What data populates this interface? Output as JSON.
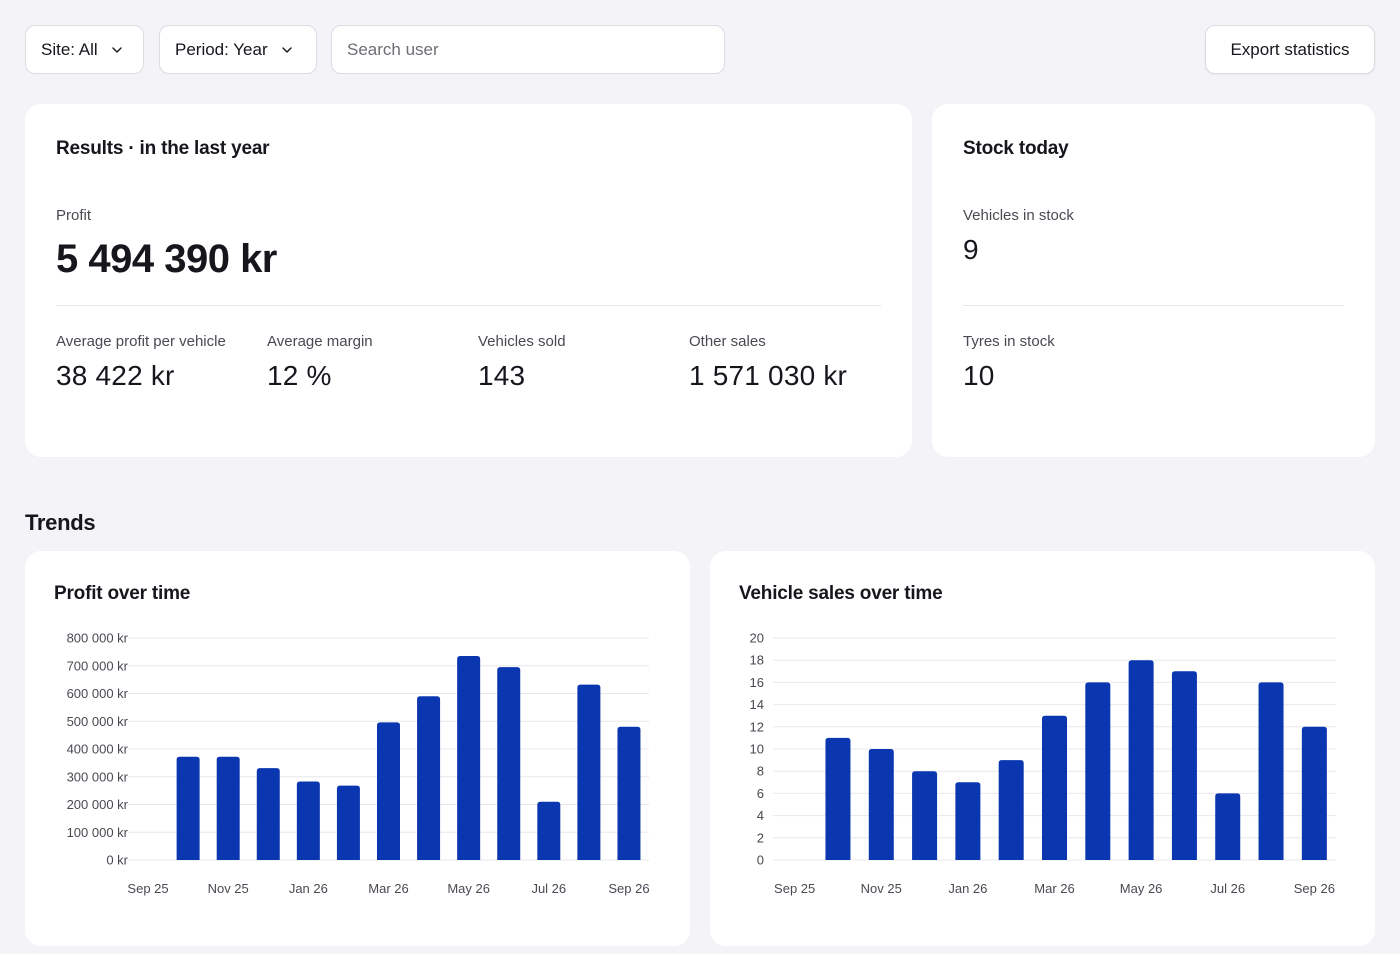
{
  "toolbar": {
    "site_label": "Site: All",
    "period_label": "Period: Year",
    "search_placeholder": "Search user",
    "export_label": "Export statistics"
  },
  "results": {
    "title": "Results · in the last year",
    "profit_label": "Profit",
    "profit_value": "5 494 390 kr",
    "metrics": [
      {
        "label": "Average profit per vehicle",
        "value": "38 422 kr"
      },
      {
        "label": "Average margin",
        "value": "12 %"
      },
      {
        "label": "Vehicles sold",
        "value": "143"
      },
      {
        "label": "Other sales",
        "value": "1 571 030 kr"
      }
    ]
  },
  "stock": {
    "title": "Stock today",
    "vehicles_label": "Vehicles in stock",
    "vehicles_value": "9",
    "tyres_label": "Tyres in stock",
    "tyres_value": "10"
  },
  "trends": {
    "title": "Trends"
  },
  "colors": {
    "bar": "#0a36b0",
    "background": "#f4f3f7",
    "card": "#ffffff"
  },
  "chart_data": [
    {
      "type": "bar",
      "title": "Profit over time",
      "xlabel": "",
      "ylabel": "",
      "ylim": [
        0,
        800000
      ],
      "y_ticks": [
        0,
        100000,
        200000,
        300000,
        400000,
        500000,
        600000,
        700000,
        800000
      ],
      "y_tick_labels": [
        "0 kr",
        "100 000 kr",
        "200 000 kr",
        "300 000 kr",
        "400 000 kr",
        "500 000 kr",
        "600 000 kr",
        "700 000 kr",
        "800 000 kr"
      ],
      "categories": [
        "Sep 25",
        "Oct 25",
        "Nov 25",
        "Dec 25",
        "Jan 26",
        "Feb 26",
        "Mar 26",
        "Apr 26",
        "May 26",
        "Jun 26",
        "Jul 26",
        "Aug 26",
        "Sep 26"
      ],
      "x_tick_labels": [
        "Sep 25",
        "Nov 25",
        "Jan 26",
        "Mar 26",
        "May 26",
        "Jul 26",
        "Sep 26"
      ],
      "values": [
        0,
        372000,
        372000,
        331000,
        283000,
        268000,
        496000,
        590000,
        735000,
        695000,
        210000,
        632000,
        480000
      ],
      "grid": true,
      "legend": "none"
    },
    {
      "type": "bar",
      "title": "Vehicle sales over time",
      "xlabel": "",
      "ylabel": "",
      "ylim": [
        0,
        20
      ],
      "y_ticks": [
        0,
        2,
        4,
        6,
        8,
        10,
        12,
        14,
        16,
        18,
        20
      ],
      "y_tick_labels": [
        "0",
        "2",
        "4",
        "6",
        "8",
        "10",
        "12",
        "14",
        "16",
        "18",
        "20"
      ],
      "categories": [
        "Sep 25",
        "Oct 25",
        "Nov 25",
        "Dec 25",
        "Jan 26",
        "Feb 26",
        "Mar 26",
        "Apr 26",
        "May 26",
        "Jun 26",
        "Jul 26",
        "Aug 26",
        "Sep 26"
      ],
      "x_tick_labels": [
        "Sep 25",
        "Nov 25",
        "Jan 26",
        "Mar 26",
        "May 26",
        "Jul 26",
        "Sep 26"
      ],
      "values": [
        0,
        11,
        10,
        8,
        7,
        9,
        13,
        16,
        18,
        17,
        6,
        16,
        12
      ],
      "grid": true,
      "legend": "none"
    }
  ]
}
